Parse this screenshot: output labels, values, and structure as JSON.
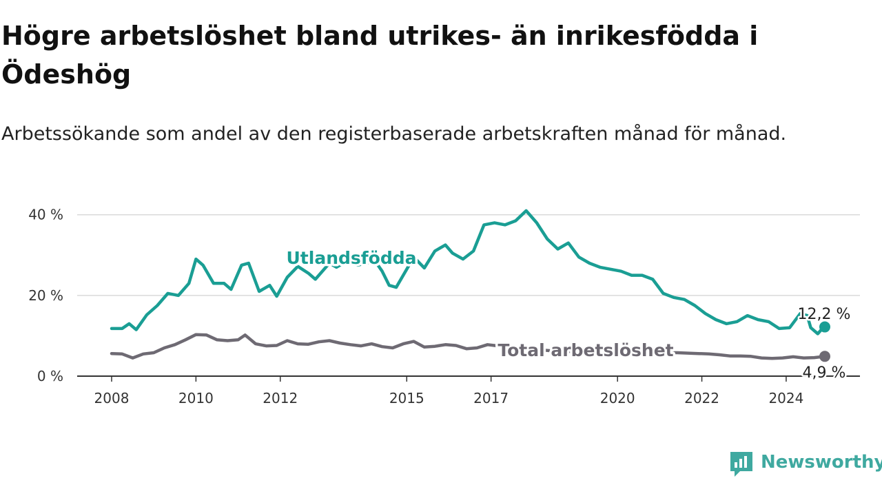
{
  "title": "Högre arbetslöshet bland utrikes- än inrikesfödda i Ödeshög",
  "subtitle": "Arbetssökande som andel av den registerbaserade arbetskraften månad för månad.",
  "brand": {
    "name": "Newsworthy",
    "icon": "newsworthy-logo-icon"
  },
  "chart_data": {
    "type": "line",
    "title": "Högre arbetslöshet bland utrikes- än inrikesfödda i Ödeshög",
    "subtitle": "Arbetssökande som andel av den registerbaserade arbetskraften månad för månad.",
    "x_range": [
      "2008-01",
      "2024-12"
    ],
    "ylim": [
      0,
      42
    ],
    "yticks": [
      {
        "value": 0,
        "label": "0 %"
      },
      {
        "value": 20,
        "label": "20 %"
      },
      {
        "value": 40,
        "label": "40 %"
      }
    ],
    "xticks": [
      {
        "value": "2008-01",
        "label": "2008"
      },
      {
        "value": "2010-01",
        "label": "2010"
      },
      {
        "value": "2012-01",
        "label": "2012"
      },
      {
        "value": "2015-01",
        "label": "2015"
      },
      {
        "value": "2017-01",
        "label": "2017"
      },
      {
        "value": "2020-01",
        "label": "2020"
      },
      {
        "value": "2022-01",
        "label": "2022"
      },
      {
        "value": "2024-01",
        "label": "2024"
      }
    ],
    "grid": true,
    "legend": "inline labels",
    "series": [
      {
        "name": "Utlandsfödda",
        "color": "#1a9e94",
        "end_label": "12,2 %",
        "points": [
          [
            "2008-01",
            11.8
          ],
          [
            "2008-04",
            11.8
          ],
          [
            "2008-06",
            13.0
          ],
          [
            "2008-08",
            11.5
          ],
          [
            "2008-11",
            15.2
          ],
          [
            "2009-02",
            17.5
          ],
          [
            "2009-05",
            20.5
          ],
          [
            "2009-08",
            20.0
          ],
          [
            "2009-11",
            23.0
          ],
          [
            "2010-01",
            29.0
          ],
          [
            "2010-03",
            27.5
          ],
          [
            "2010-06",
            23.0
          ],
          [
            "2010-09",
            23.0
          ],
          [
            "2010-11",
            21.5
          ],
          [
            "2011-02",
            27.5
          ],
          [
            "2011-04",
            28.0
          ],
          [
            "2011-07",
            21.0
          ],
          [
            "2011-10",
            22.5
          ],
          [
            "2011-12",
            19.8
          ],
          [
            "2012-03",
            24.5
          ],
          [
            "2012-06",
            27.2
          ],
          [
            "2012-09",
            25.5
          ],
          [
            "2012-11",
            24.0
          ],
          [
            "2013-03",
            28.0
          ],
          [
            "2013-05",
            27.0
          ],
          [
            "2013-08",
            28.5
          ],
          [
            "2013-11",
            27.5
          ],
          [
            "2014-04",
            28.5
          ],
          [
            "2014-06",
            26.0
          ],
          [
            "2014-08",
            22.5
          ],
          [
            "2014-10",
            22.0
          ],
          [
            "2015-03",
            29.5
          ],
          [
            "2015-06",
            26.8
          ],
          [
            "2015-09",
            31.0
          ],
          [
            "2015-12",
            32.5
          ],
          [
            "2016-02",
            30.5
          ],
          [
            "2016-05",
            29.0
          ],
          [
            "2016-08",
            31.0
          ],
          [
            "2016-11",
            37.5
          ],
          [
            "2017-02",
            38.0
          ],
          [
            "2017-05",
            37.5
          ],
          [
            "2017-08",
            38.5
          ],
          [
            "2017-11",
            41.0
          ],
          [
            "2018-02",
            38.0
          ],
          [
            "2018-05",
            34.0
          ],
          [
            "2018-08",
            31.5
          ],
          [
            "2018-11",
            33.0
          ],
          [
            "2019-02",
            29.5
          ],
          [
            "2019-05",
            28.0
          ],
          [
            "2019-08",
            27.0
          ],
          [
            "2019-11",
            26.5
          ],
          [
            "2020-02",
            26.0
          ],
          [
            "2020-05",
            25.0
          ],
          [
            "2020-08",
            25.0
          ],
          [
            "2020-11",
            24.0
          ],
          [
            "2021-02",
            20.5
          ],
          [
            "2021-05",
            19.5
          ],
          [
            "2021-08",
            19.0
          ],
          [
            "2021-11",
            17.5
          ],
          [
            "2022-02",
            15.5
          ],
          [
            "2022-05",
            14.0
          ],
          [
            "2022-08",
            13.0
          ],
          [
            "2022-11",
            13.5
          ],
          [
            "2023-02",
            15.0
          ],
          [
            "2023-05",
            14.0
          ],
          [
            "2023-08",
            13.5
          ],
          [
            "2023-11",
            11.8
          ],
          [
            "2024-02",
            12.0
          ],
          [
            "2024-05",
            15.5
          ],
          [
            "2024-07",
            15.0
          ],
          [
            "2024-08",
            12.0
          ],
          [
            "2024-10",
            10.5
          ],
          [
            "2024-11",
            11.5
          ],
          [
            "2024-12",
            12.2
          ]
        ]
      },
      {
        "name": "Total arbetslöshet",
        "color": "#6e6a73",
        "end_label": "4,9 %",
        "points": [
          [
            "2008-01",
            5.6
          ],
          [
            "2008-04",
            5.5
          ],
          [
            "2008-07",
            4.5
          ],
          [
            "2008-10",
            5.5
          ],
          [
            "2009-01",
            5.8
          ],
          [
            "2009-04",
            7.0
          ],
          [
            "2009-07",
            7.8
          ],
          [
            "2009-10",
            9.0
          ],
          [
            "2010-01",
            10.3
          ],
          [
            "2010-04",
            10.2
          ],
          [
            "2010-07",
            9.0
          ],
          [
            "2010-10",
            8.8
          ],
          [
            "2011-01",
            9.0
          ],
          [
            "2011-03",
            10.2
          ],
          [
            "2011-06",
            8.0
          ],
          [
            "2011-09",
            7.5
          ],
          [
            "2011-12",
            7.6
          ],
          [
            "2012-03",
            8.8
          ],
          [
            "2012-06",
            8.0
          ],
          [
            "2012-09",
            7.9
          ],
          [
            "2012-12",
            8.5
          ],
          [
            "2013-03",
            8.8
          ],
          [
            "2013-06",
            8.2
          ],
          [
            "2013-09",
            7.8
          ],
          [
            "2013-12",
            7.5
          ],
          [
            "2014-03",
            8.0
          ],
          [
            "2014-06",
            7.3
          ],
          [
            "2014-09",
            7.0
          ],
          [
            "2014-12",
            8.0
          ],
          [
            "2015-03",
            8.6
          ],
          [
            "2015-06",
            7.2
          ],
          [
            "2015-09",
            7.4
          ],
          [
            "2015-12",
            7.8
          ],
          [
            "2016-03",
            7.6
          ],
          [
            "2016-06",
            6.8
          ],
          [
            "2016-09",
            7.0
          ],
          [
            "2016-12",
            7.8
          ],
          [
            "2017-03",
            7.5
          ],
          [
            "2017-06",
            7.2
          ],
          [
            "2017-09",
            7.0
          ],
          [
            "2017-12",
            6.8
          ],
          [
            "2018-03",
            6.5
          ],
          [
            "2018-06",
            6.3
          ],
          [
            "2018-09",
            6.2
          ],
          [
            "2018-12",
            6.1
          ],
          [
            "2019-03",
            6.0
          ],
          [
            "2019-06",
            6.0
          ],
          [
            "2019-09",
            5.9
          ],
          [
            "2019-12",
            5.9
          ],
          [
            "2020-03",
            6.0
          ],
          [
            "2020-06",
            6.1
          ],
          [
            "2020-09",
            6.0
          ],
          [
            "2020-12",
            5.9
          ],
          [
            "2021-03",
            5.8
          ],
          [
            "2021-06",
            5.8
          ],
          [
            "2021-09",
            5.7
          ],
          [
            "2021-12",
            5.6
          ],
          [
            "2022-03",
            5.5
          ],
          [
            "2022-06",
            5.3
          ],
          [
            "2022-09",
            5.0
          ],
          [
            "2022-12",
            5.0
          ],
          [
            "2023-03",
            4.9
          ],
          [
            "2023-06",
            4.5
          ],
          [
            "2023-09",
            4.4
          ],
          [
            "2023-12",
            4.5
          ],
          [
            "2024-03",
            4.8
          ],
          [
            "2024-06",
            4.5
          ],
          [
            "2024-09",
            4.6
          ],
          [
            "2024-12",
            4.9
          ]
        ]
      }
    ]
  }
}
